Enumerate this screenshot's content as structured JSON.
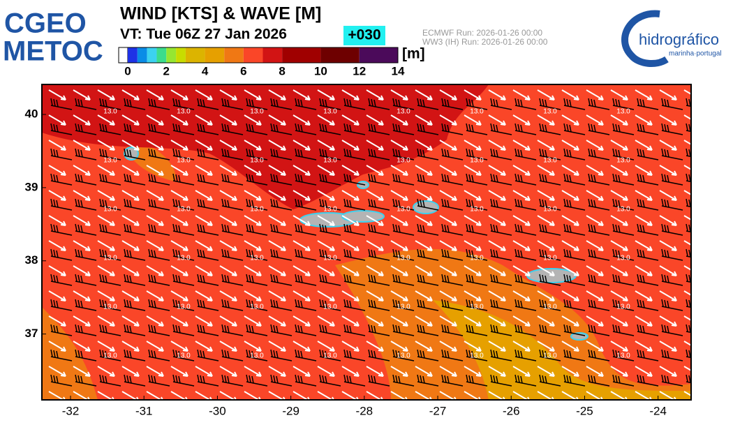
{
  "header": {
    "logo_left": [
      "CGEO",
      "METOC"
    ],
    "title": "WIND [KTS] & WAVE [M]",
    "valid_time": "VT:  Tue 06Z 27 Jan 2026",
    "lead": "+030",
    "runs": [
      "ECMWF   Run: 2026-01-26 00:00",
      "WW3 (IH) Run: 2026-01-26 00:00"
    ],
    "logo_right": {
      "name": "hidrográfico",
      "subtitle": "marinha·portugal"
    }
  },
  "colorbar": {
    "unit": "[m]",
    "bins": [
      0,
      0.5,
      1,
      1.5,
      2,
      2.5,
      3,
      4,
      5,
      6,
      7,
      8,
      10,
      12,
      14
    ],
    "colors": [
      "#1e32e6",
      "#0a8ce6",
      "#3cd2f0",
      "#3cdc8c",
      "#96e632",
      "#c8dc00",
      "#dcb400",
      "#e6a000",
      "#f07814",
      "#fa4628",
      "#d21414",
      "#a00000",
      "#6e0000",
      "#4b0a5a"
    ],
    "ticks": [
      0,
      2,
      4,
      6,
      8,
      10,
      12,
      14
    ]
  },
  "map": {
    "xlim": [
      -32.39,
      -23.55
    ],
    "ylim": [
      36.1,
      40.41
    ],
    "xticks": [
      -32,
      -31,
      -30,
      -29,
      -28,
      -27,
      -26,
      -25,
      -24
    ],
    "yticks": [
      37,
      38,
      39,
      40
    ],
    "contour_label": "13.0"
  }
}
